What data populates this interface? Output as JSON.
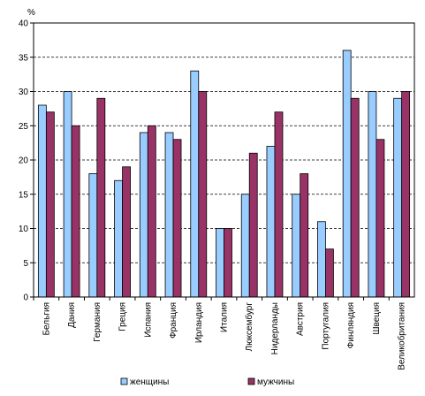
{
  "chart_data": {
    "type": "bar",
    "unit_label": "%",
    "categories": [
      "Бельгия",
      "Дания",
      "Германия",
      "Греция",
      "Испания",
      "Франция",
      "Ирландия",
      "Италия",
      "Люксембург",
      "Нидерланды",
      "Австрия",
      "Португалия",
      "Финляндия",
      "Швеция",
      "Великобритания"
    ],
    "series": [
      {
        "name": "женщины",
        "color": "#99ccff",
        "values": [
          28,
          30,
          18,
          17,
          24,
          24,
          33,
          10,
          15,
          22,
          15,
          11,
          36,
          30,
          29
        ]
      },
      {
        "name": "мужчины",
        "color": "#993366",
        "values": [
          27,
          25,
          29,
          19,
          25,
          23,
          30,
          10,
          21,
          27,
          18,
          7,
          29,
          23,
          30
        ]
      }
    ],
    "ylim": [
      0,
      40
    ],
    "yticks": [
      0,
      5,
      10,
      15,
      20,
      25,
      30,
      35,
      40
    ],
    "grid": true,
    "legend_position": "bottom"
  }
}
